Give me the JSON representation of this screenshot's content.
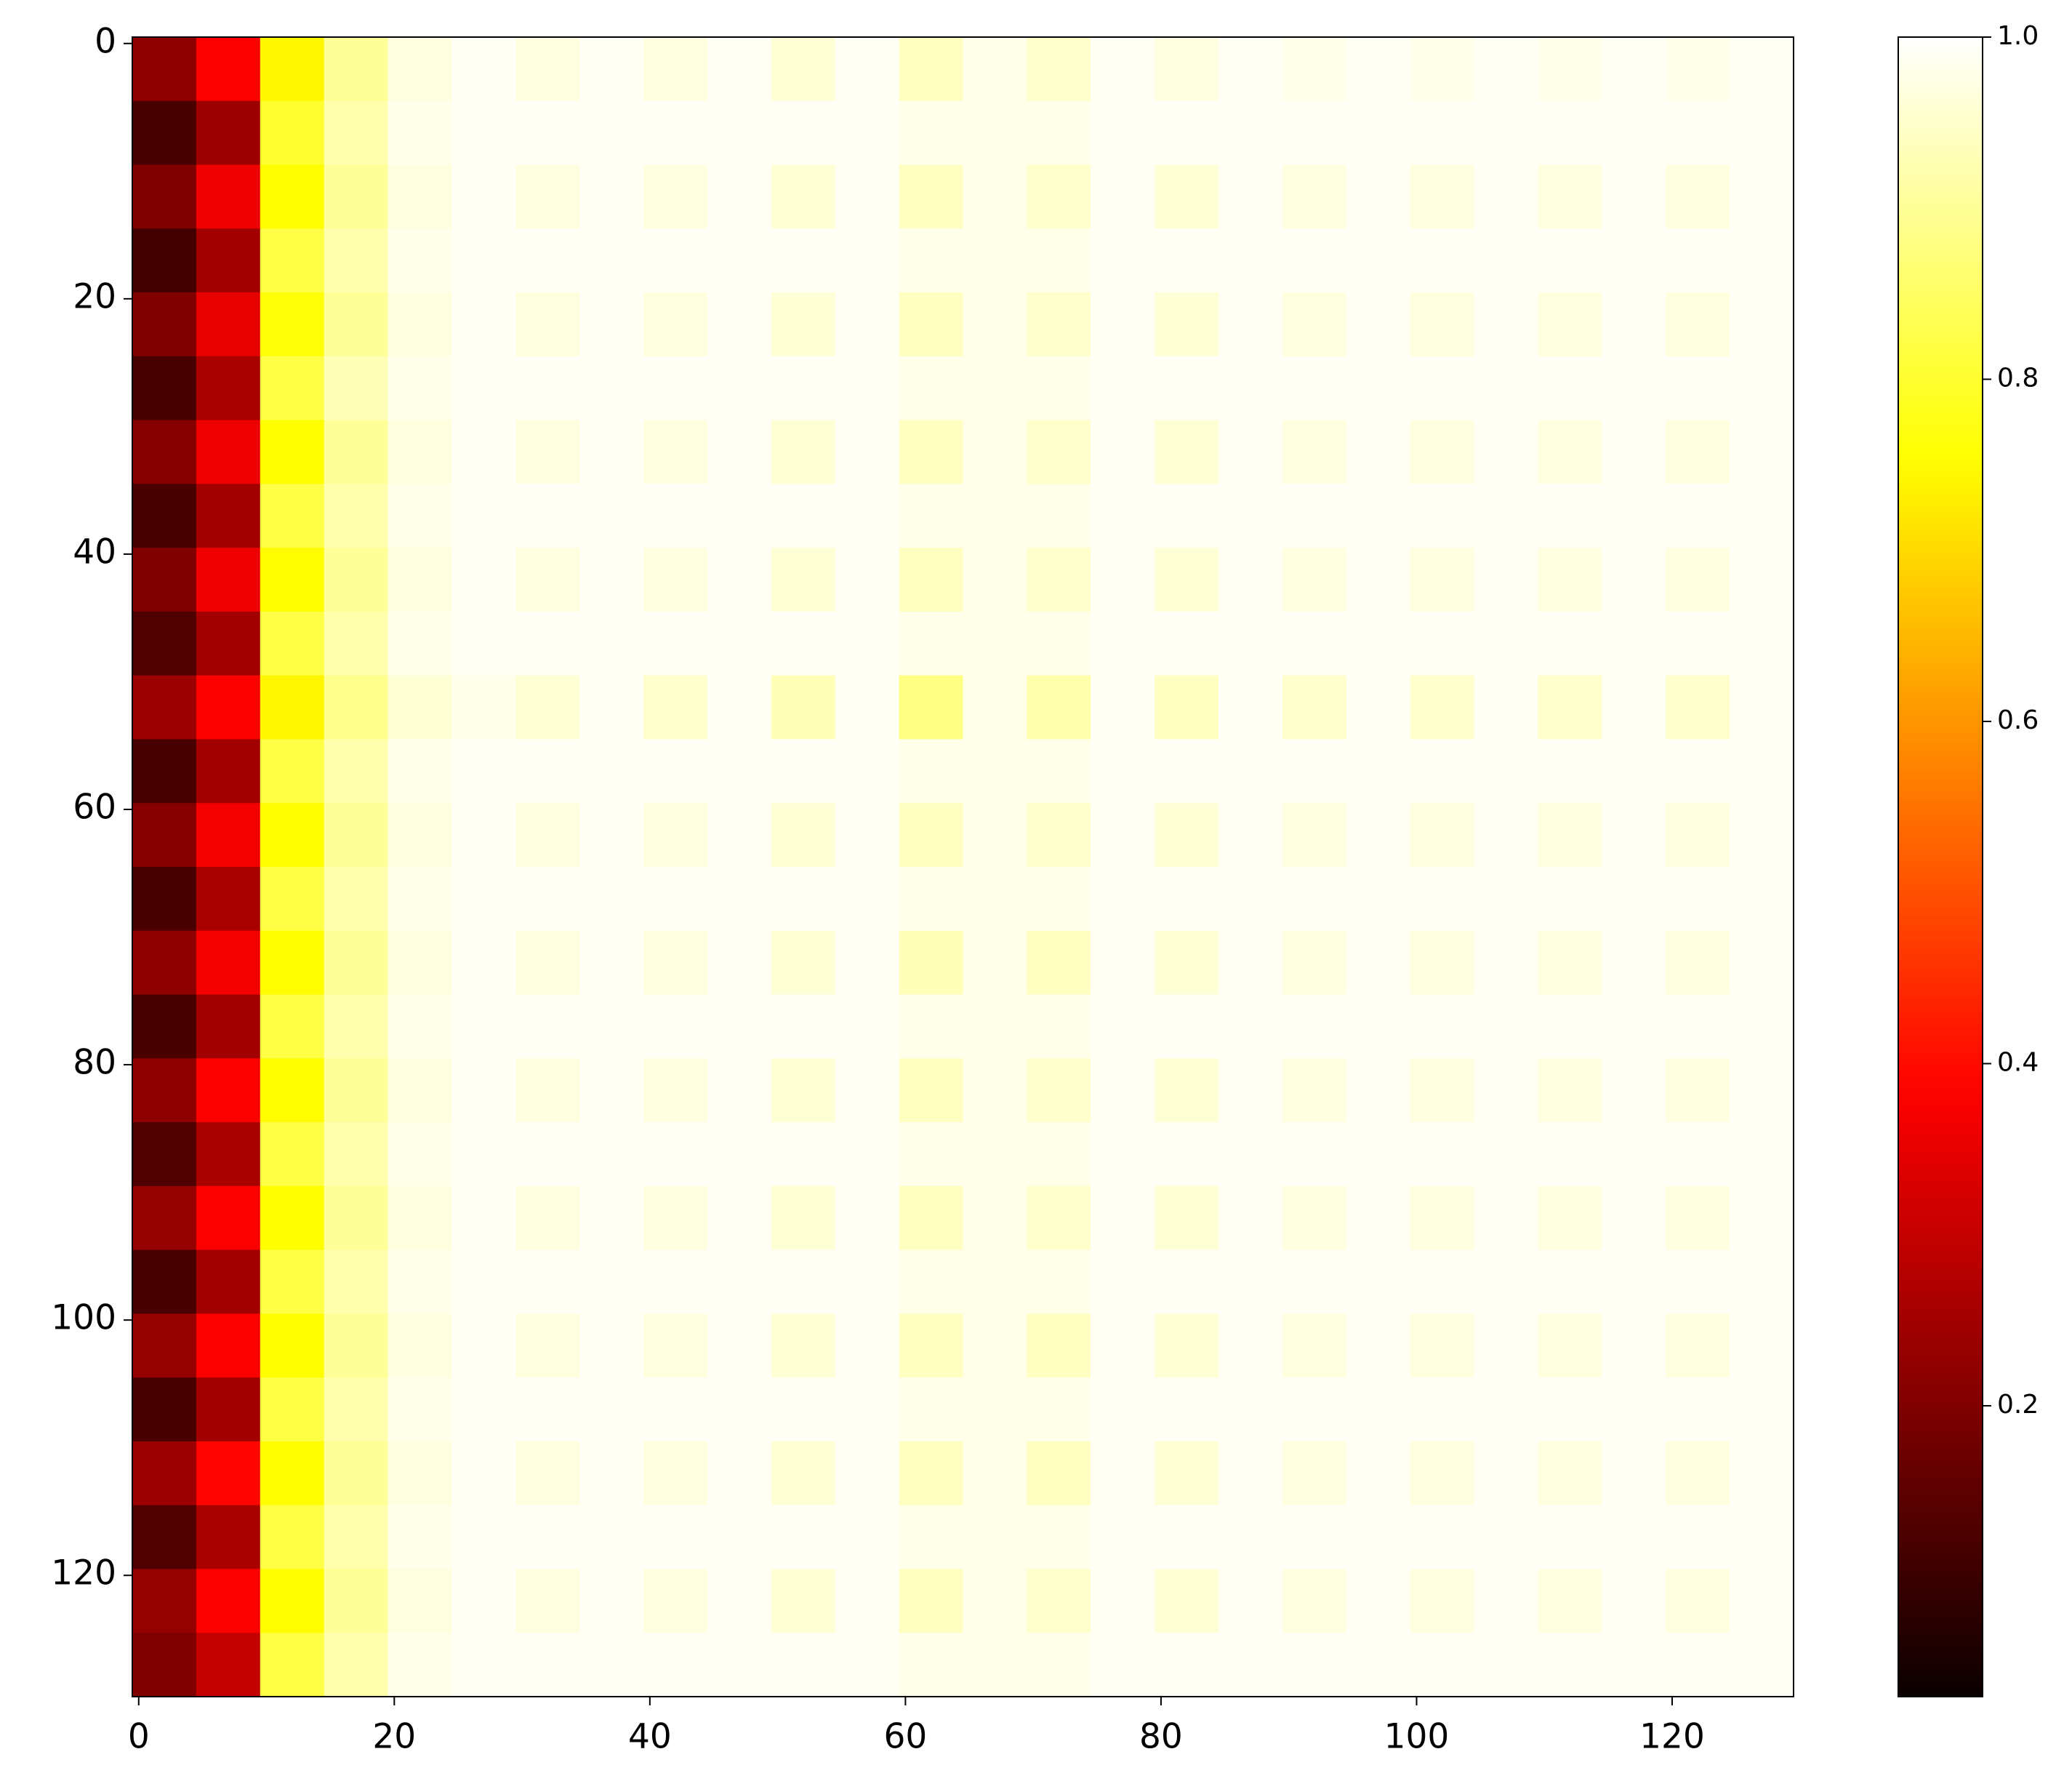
{
  "chart_data": {
    "type": "heatmap",
    "colormap": "hot",
    "xlim": [
      -0.5,
      129.5
    ],
    "ylim": [
      129.5,
      -0.5
    ],
    "xticks": [
      0,
      20,
      40,
      60,
      80,
      100,
      120
    ],
    "yticks": [
      0,
      20,
      40,
      60,
      80,
      100,
      120
    ],
    "clim": [
      0.03,
      1
    ],
    "cticks": [
      0.2,
      0.4,
      0.6,
      0.8,
      {
        "value": 1,
        "label": "1.0"
      }
    ],
    "z": [
      [
        0.22,
        0.38,
        0.74,
        0.9,
        0.97,
        0.99,
        0.97,
        0.99,
        0.97,
        0.99,
        0.96,
        0.99,
        0.94,
        0.98,
        0.95,
        0.99,
        0.97,
        0.99,
        0.98,
        0.99,
        0.98,
        0.99,
        0.98,
        0.99,
        0.98,
        0.99
      ],
      [
        0.12,
        0.24,
        0.8,
        0.92,
        0.98,
        0.99,
        0.99,
        0.99,
        0.99,
        0.99,
        0.99,
        0.99,
        0.98,
        0.98,
        0.98,
        0.99,
        0.99,
        0.99,
        0.99,
        0.99,
        0.99,
        0.99,
        0.99,
        0.99,
        0.99,
        0.99
      ],
      [
        0.2,
        0.36,
        0.75,
        0.9,
        0.97,
        0.99,
        0.97,
        0.99,
        0.97,
        0.99,
        0.96,
        0.99,
        0.94,
        0.98,
        0.95,
        0.99,
        0.96,
        0.99,
        0.97,
        0.99,
        0.97,
        0.99,
        0.97,
        0.99,
        0.97,
        0.99
      ],
      [
        0.11,
        0.25,
        0.82,
        0.92,
        0.98,
        0.99,
        0.99,
        0.99,
        0.99,
        0.99,
        0.99,
        0.99,
        0.98,
        0.98,
        0.98,
        0.99,
        0.99,
        0.99,
        0.99,
        0.99,
        0.99,
        0.99,
        0.99,
        0.99,
        0.99,
        0.99
      ],
      [
        0.2,
        0.35,
        0.76,
        0.9,
        0.97,
        0.99,
        0.97,
        0.99,
        0.97,
        0.99,
        0.96,
        0.99,
        0.94,
        0.98,
        0.95,
        0.99,
        0.96,
        0.99,
        0.97,
        0.99,
        0.97,
        0.99,
        0.97,
        0.99,
        0.97,
        0.99
      ],
      [
        0.12,
        0.26,
        0.82,
        0.93,
        0.98,
        0.99,
        0.99,
        0.99,
        0.99,
        0.99,
        0.99,
        0.99,
        0.98,
        0.98,
        0.98,
        0.99,
        0.99,
        0.99,
        0.99,
        0.99,
        0.99,
        0.99,
        0.99,
        0.99,
        0.99,
        0.99
      ],
      [
        0.21,
        0.36,
        0.75,
        0.9,
        0.97,
        0.99,
        0.97,
        0.99,
        0.97,
        0.99,
        0.96,
        0.99,
        0.94,
        0.98,
        0.95,
        0.99,
        0.96,
        0.99,
        0.97,
        0.99,
        0.97,
        0.99,
        0.97,
        0.99,
        0.97,
        0.99
      ],
      [
        0.12,
        0.25,
        0.82,
        0.92,
        0.98,
        0.99,
        0.99,
        0.99,
        0.99,
        0.99,
        0.99,
        0.99,
        0.98,
        0.98,
        0.98,
        0.99,
        0.99,
        0.99,
        0.99,
        0.99,
        0.99,
        0.99,
        0.99,
        0.99,
        0.99,
        0.99
      ],
      [
        0.2,
        0.36,
        0.75,
        0.9,
        0.97,
        0.99,
        0.97,
        0.99,
        0.97,
        0.99,
        0.96,
        0.99,
        0.94,
        0.98,
        0.95,
        0.99,
        0.96,
        0.99,
        0.97,
        0.99,
        0.97,
        0.99,
        0.97,
        0.99,
        0.97,
        0.99
      ],
      [
        0.13,
        0.25,
        0.82,
        0.92,
        0.98,
        0.99,
        0.99,
        0.99,
        0.99,
        0.99,
        0.99,
        0.99,
        0.98,
        0.98,
        0.98,
        0.99,
        0.99,
        0.99,
        0.99,
        0.99,
        0.99,
        0.99,
        0.99,
        0.99,
        0.99,
        0.99
      ],
      [
        0.24,
        0.38,
        0.74,
        0.89,
        0.96,
        0.98,
        0.96,
        0.99,
        0.95,
        0.99,
        0.93,
        0.99,
        0.88,
        0.98,
        0.92,
        0.99,
        0.94,
        0.99,
        0.95,
        0.99,
        0.95,
        0.99,
        0.95,
        0.99,
        0.95,
        0.99
      ],
      [
        0.12,
        0.25,
        0.82,
        0.92,
        0.98,
        0.99,
        0.99,
        0.99,
        0.99,
        0.99,
        0.99,
        0.99,
        0.98,
        0.98,
        0.98,
        0.99,
        0.99,
        0.99,
        0.99,
        0.99,
        0.99,
        0.99,
        0.99,
        0.99,
        0.99,
        0.99
      ],
      [
        0.21,
        0.37,
        0.75,
        0.9,
        0.97,
        0.99,
        0.97,
        0.99,
        0.97,
        0.99,
        0.96,
        0.99,
        0.94,
        0.98,
        0.95,
        0.99,
        0.96,
        0.99,
        0.97,
        0.99,
        0.97,
        0.99,
        0.97,
        0.99,
        0.97,
        0.99
      ],
      [
        0.12,
        0.26,
        0.82,
        0.92,
        0.98,
        0.99,
        0.99,
        0.99,
        0.99,
        0.99,
        0.99,
        0.99,
        0.98,
        0.98,
        0.98,
        0.99,
        0.99,
        0.99,
        0.99,
        0.99,
        0.99,
        0.99,
        0.99,
        0.99,
        0.99,
        0.99
      ],
      [
        0.22,
        0.37,
        0.75,
        0.9,
        0.97,
        0.99,
        0.97,
        0.99,
        0.97,
        0.99,
        0.96,
        0.99,
        0.93,
        0.98,
        0.94,
        0.99,
        0.96,
        0.99,
        0.97,
        0.99,
        0.97,
        0.99,
        0.97,
        0.99,
        0.97,
        0.99
      ],
      [
        0.12,
        0.25,
        0.82,
        0.92,
        0.98,
        0.99,
        0.99,
        0.99,
        0.99,
        0.99,
        0.99,
        0.99,
        0.98,
        0.98,
        0.98,
        0.99,
        0.99,
        0.99,
        0.99,
        0.99,
        0.99,
        0.99,
        0.99,
        0.99,
        0.99,
        0.99
      ],
      [
        0.22,
        0.38,
        0.75,
        0.9,
        0.97,
        0.99,
        0.97,
        0.99,
        0.97,
        0.99,
        0.96,
        0.99,
        0.94,
        0.98,
        0.95,
        0.99,
        0.96,
        0.99,
        0.97,
        0.99,
        0.97,
        0.99,
        0.97,
        0.99,
        0.97,
        0.99
      ],
      [
        0.13,
        0.26,
        0.82,
        0.92,
        0.98,
        0.99,
        0.99,
        0.99,
        0.99,
        0.99,
        0.99,
        0.99,
        0.98,
        0.98,
        0.98,
        0.99,
        0.99,
        0.99,
        0.99,
        0.99,
        0.99,
        0.99,
        0.99,
        0.99,
        0.99,
        0.99
      ],
      [
        0.23,
        0.38,
        0.75,
        0.9,
        0.97,
        0.99,
        0.97,
        0.99,
        0.97,
        0.99,
        0.96,
        0.99,
        0.94,
        0.98,
        0.95,
        0.99,
        0.96,
        0.99,
        0.97,
        0.99,
        0.97,
        0.99,
        0.97,
        0.99,
        0.97,
        0.99
      ],
      [
        0.12,
        0.25,
        0.82,
        0.92,
        0.98,
        0.99,
        0.99,
        0.99,
        0.99,
        0.99,
        0.99,
        0.99,
        0.98,
        0.98,
        0.98,
        0.99,
        0.99,
        0.99,
        0.99,
        0.99,
        0.99,
        0.99,
        0.99,
        0.99,
        0.99,
        0.99
      ],
      [
        0.23,
        0.38,
        0.75,
        0.9,
        0.97,
        0.99,
        0.97,
        0.99,
        0.97,
        0.99,
        0.96,
        0.99,
        0.94,
        0.98,
        0.94,
        0.99,
        0.96,
        0.99,
        0.97,
        0.99,
        0.97,
        0.99,
        0.97,
        0.99,
        0.97,
        0.99
      ],
      [
        0.12,
        0.25,
        0.82,
        0.92,
        0.98,
        0.99,
        0.99,
        0.99,
        0.99,
        0.99,
        0.99,
        0.99,
        0.98,
        0.98,
        0.98,
        0.99,
        0.99,
        0.99,
        0.99,
        0.99,
        0.99,
        0.99,
        0.99,
        0.99,
        0.99,
        0.99
      ],
      [
        0.24,
        0.39,
        0.75,
        0.9,
        0.97,
        0.99,
        0.97,
        0.99,
        0.97,
        0.99,
        0.96,
        0.99,
        0.94,
        0.98,
        0.94,
        0.99,
        0.96,
        0.99,
        0.97,
        0.99,
        0.97,
        0.99,
        0.97,
        0.99,
        0.97,
        0.99
      ],
      [
        0.13,
        0.26,
        0.82,
        0.92,
        0.98,
        0.99,
        0.99,
        0.99,
        0.99,
        0.99,
        0.99,
        0.99,
        0.98,
        0.98,
        0.98,
        0.99,
        0.99,
        0.99,
        0.99,
        0.99,
        0.99,
        0.99,
        0.99,
        0.99,
        0.99,
        0.99
      ],
      [
        0.23,
        0.38,
        0.75,
        0.9,
        0.97,
        0.99,
        0.97,
        0.99,
        0.97,
        0.99,
        0.96,
        0.99,
        0.94,
        0.98,
        0.95,
        0.99,
        0.96,
        0.99,
        0.97,
        0.99,
        0.97,
        0.99,
        0.97,
        0.99,
        0.97,
        0.99
      ],
      [
        0.2,
        0.3,
        0.82,
        0.92,
        0.98,
        0.99,
        0.99,
        0.99,
        0.99,
        0.99,
        0.99,
        0.99,
        0.98,
        0.98,
        0.98,
        0.99,
        0.99,
        0.99,
        0.99,
        0.99,
        0.99,
        0.99,
        0.99,
        0.99,
        0.99,
        0.99
      ]
    ]
  }
}
